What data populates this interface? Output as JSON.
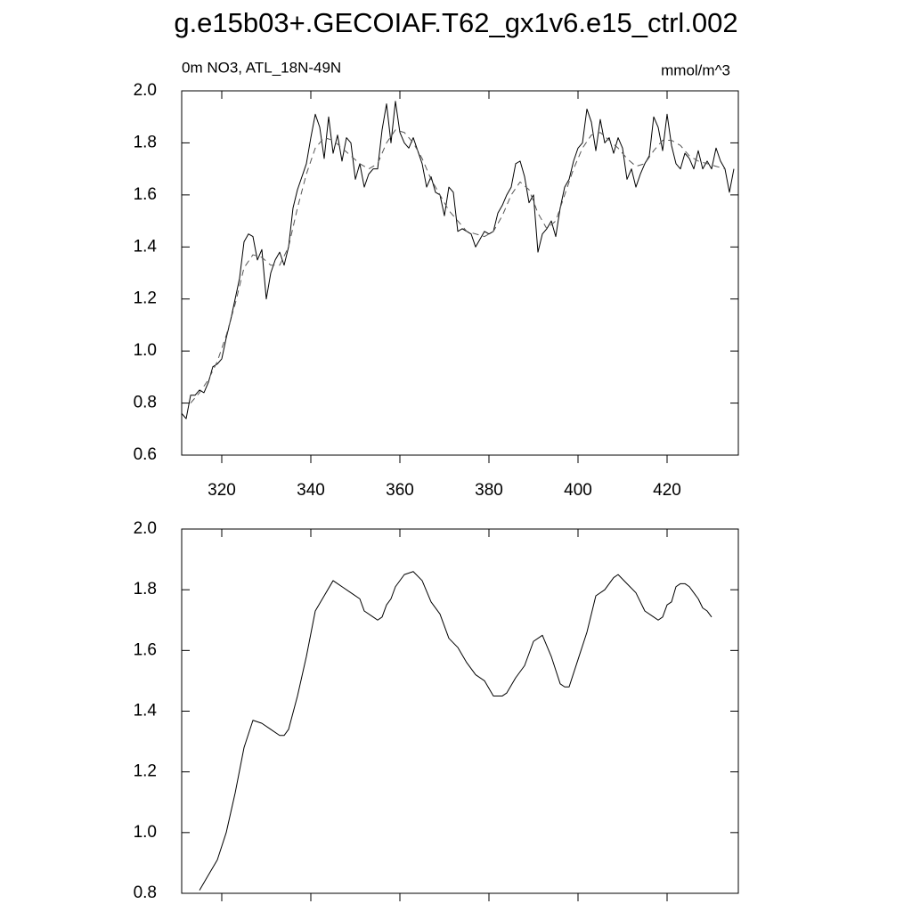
{
  "chart_data": [
    {
      "type": "line",
      "title": "g.e15b03+.GECOIAF.T62_gx1v6.e15_ctrl.002",
      "subtitle": "0m NO3, ATL_18N-49N",
      "units_label": "mmol/m^3",
      "xlim": [
        311,
        436
      ],
      "xticks": [
        320,
        340,
        360,
        380,
        400,
        420
      ],
      "xlabels": true,
      "ylim": [
        0.6,
        2.0
      ],
      "yticks": [
        0.6,
        0.8,
        {
          "value": 1.0,
          "label": "1.0"
        },
        1.2,
        1.4,
        1.6,
        1.8,
        {
          "value": 2.0,
          "label": "2.0"
        }
      ],
      "series": [
        {
          "color": "#000000",
          "dash": false,
          "x": [
            311,
            312,
            313,
            314,
            315,
            316,
            317,
            318,
            319,
            320,
            321,
            322,
            323,
            324,
            325,
            326,
            327,
            328,
            329,
            330,
            331,
            332,
            333,
            334,
            335,
            336,
            337,
            338,
            339,
            340,
            341,
            342,
            343,
            344,
            345,
            346,
            347,
            348,
            349,
            350,
            351,
            352,
            353,
            354,
            355,
            356,
            357,
            358,
            359,
            360,
            361,
            362,
            363,
            364,
            365,
            366,
            367,
            368,
            369,
            370,
            371,
            372,
            373,
            374,
            375,
            376,
            377,
            378,
            379,
            380,
            381,
            382,
            383,
            384,
            385,
            386,
            387,
            388,
            389,
            390,
            391,
            392,
            393,
            394,
            395,
            396,
            397,
            398,
            399,
            400,
            401,
            402,
            403,
            404,
            405,
            406,
            407,
            408,
            409,
            410,
            411,
            412,
            413,
            414,
            415,
            416,
            417,
            418,
            419,
            420,
            421,
            422,
            423,
            424,
            425,
            426,
            427,
            428,
            429,
            430,
            431,
            432,
            433,
            434,
            435
          ],
          "values": [
            0.76,
            0.74,
            0.83,
            0.83,
            0.85,
            0.84,
            0.88,
            0.94,
            0.95,
            0.97,
            1.05,
            1.12,
            1.2,
            1.28,
            1.42,
            1.45,
            1.44,
            1.35,
            1.39,
            1.2,
            1.3,
            1.35,
            1.38,
            1.33,
            1.4,
            1.55,
            1.62,
            1.67,
            1.72,
            1.82,
            1.91,
            1.86,
            1.74,
            1.9,
            1.76,
            1.83,
            1.73,
            1.82,
            1.8,
            1.66,
            1.72,
            1.63,
            1.68,
            1.7,
            1.7,
            1.85,
            1.95,
            1.8,
            1.96,
            1.84,
            1.8,
            1.78,
            1.82,
            1.77,
            1.72,
            1.63,
            1.67,
            1.61,
            1.6,
            1.52,
            1.63,
            1.61,
            1.46,
            1.47,
            1.46,
            1.45,
            1.4,
            1.43,
            1.46,
            1.45,
            1.46,
            1.53,
            1.56,
            1.6,
            1.63,
            1.72,
            1.73,
            1.67,
            1.57,
            1.6,
            1.38,
            1.45,
            1.47,
            1.5,
            1.44,
            1.55,
            1.63,
            1.66,
            1.73,
            1.78,
            1.8,
            1.93,
            1.88,
            1.77,
            1.89,
            1.8,
            1.82,
            1.76,
            1.82,
            1.78,
            1.66,
            1.7,
            1.63,
            1.68,
            1.72,
            1.75,
            1.9,
            1.86,
            1.77,
            1.91,
            1.79,
            1.72,
            1.7,
            1.76,
            1.74,
            1.7,
            1.77,
            1.7,
            1.73,
            1.7,
            1.78,
            1.73,
            1.7,
            1.61,
            1.7
          ]
        },
        {
          "color": "#555555",
          "dash": true,
          "x": [
            313,
            315,
            317,
            319,
            321,
            323,
            325,
            327,
            329,
            331,
            333,
            335,
            337,
            339,
            341,
            343,
            345,
            347,
            349,
            351,
            353,
            355,
            357,
            359,
            361,
            363,
            365,
            367,
            369,
            371,
            373,
            375,
            377,
            379,
            381,
            383,
            385,
            387,
            389,
            391,
            393,
            395,
            397,
            399,
            401,
            403,
            405,
            407,
            409,
            411,
            413,
            415,
            417,
            419,
            421,
            423,
            425,
            427,
            429,
            431,
            433
          ],
          "values": [
            0.8,
            0.84,
            0.89,
            0.96,
            1.06,
            1.18,
            1.32,
            1.37,
            1.36,
            1.33,
            1.33,
            1.4,
            1.55,
            1.68,
            1.78,
            1.82,
            1.81,
            1.78,
            1.75,
            1.72,
            1.7,
            1.72,
            1.8,
            1.85,
            1.84,
            1.8,
            1.74,
            1.66,
            1.6,
            1.54,
            1.5,
            1.46,
            1.45,
            1.44,
            1.46,
            1.52,
            1.6,
            1.65,
            1.62,
            1.53,
            1.47,
            1.5,
            1.6,
            1.7,
            1.78,
            1.83,
            1.84,
            1.81,
            1.78,
            1.74,
            1.71,
            1.72,
            1.77,
            1.81,
            1.81,
            1.79,
            1.75,
            1.73,
            1.72,
            1.71,
            1.7
          ]
        }
      ]
    },
    {
      "type": "line",
      "xlim": [
        311,
        436
      ],
      "xticks": [
        320,
        340,
        360,
        380,
        400,
        420
      ],
      "xlabels": false,
      "ylim": [
        0.8,
        2.0
      ],
      "yticks": [
        0.8,
        {
          "value": 1.0,
          "label": "1.0"
        },
        1.2,
        1.4,
        1.6,
        1.8,
        {
          "value": 2.0,
          "label": "2.0"
        }
      ],
      "series": [
        {
          "color": "#000000",
          "dash": false,
          "x": [
            315,
            317,
            319,
            321,
            323,
            325,
            327,
            329,
            331,
            333,
            334,
            335,
            337,
            339,
            341,
            343,
            345,
            347,
            349,
            351,
            352,
            354,
            355,
            356,
            357,
            358,
            359,
            361,
            363,
            365,
            367,
            369,
            371,
            373,
            375,
            377,
            379,
            381,
            383,
            384,
            386,
            388,
            390,
            392,
            394,
            396,
            397,
            398,
            400,
            402,
            404,
            406,
            408,
            409,
            411,
            413,
            415,
            417,
            418,
            419,
            420,
            421,
            422,
            423,
            424,
            425,
            426,
            427,
            428,
            429,
            430
          ],
          "values": [
            0.81,
            0.86,
            0.91,
            1.0,
            1.13,
            1.28,
            1.37,
            1.36,
            1.34,
            1.32,
            1.32,
            1.34,
            1.45,
            1.58,
            1.73,
            1.78,
            1.83,
            1.81,
            1.79,
            1.77,
            1.73,
            1.71,
            1.7,
            1.71,
            1.75,
            1.77,
            1.81,
            1.85,
            1.86,
            1.83,
            1.76,
            1.72,
            1.64,
            1.61,
            1.56,
            1.52,
            1.5,
            1.45,
            1.45,
            1.46,
            1.51,
            1.55,
            1.63,
            1.65,
            1.58,
            1.49,
            1.48,
            1.48,
            1.57,
            1.66,
            1.78,
            1.8,
            1.84,
            1.85,
            1.82,
            1.79,
            1.73,
            1.71,
            1.7,
            1.71,
            1.75,
            1.76,
            1.81,
            1.82,
            1.82,
            1.81,
            1.79,
            1.77,
            1.74,
            1.73,
            1.71
          ]
        }
      ]
    }
  ]
}
